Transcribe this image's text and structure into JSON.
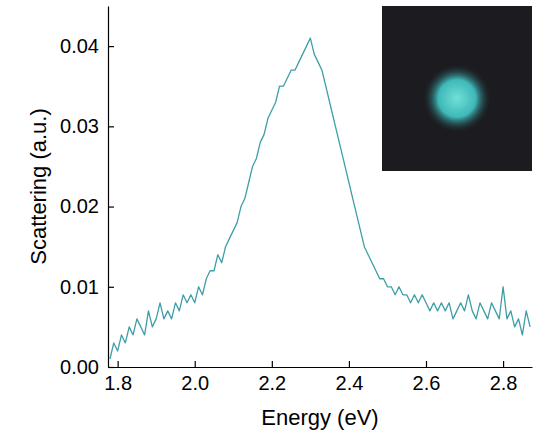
{
  "chart_data": {
    "type": "line",
    "xlabel": "Energy (eV)",
    "ylabel": "Scattering (a.u.)",
    "color": "#3e9ea8",
    "xlim": [
      1.775,
      2.875
    ],
    "ylim": [
      0,
      0.045
    ],
    "xticks": [
      1.8,
      {
        "value": 2,
        "label": "2.0"
      },
      2.2,
      2.4,
      2.6,
      2.8
    ],
    "yticks": [
      {
        "value": 0,
        "label": "0.00"
      },
      0.01,
      0.02,
      0.03,
      0.04
    ],
    "x": [
      1.78,
      1.79,
      1.8,
      1.81,
      1.82,
      1.83,
      1.84,
      1.85,
      1.86,
      1.87,
      1.88,
      1.89,
      1.9,
      1.91,
      1.92,
      1.93,
      1.94,
      1.95,
      1.96,
      1.97,
      1.98,
      1.99,
      2.0,
      2.01,
      2.02,
      2.03,
      2.04,
      2.05,
      2.06,
      2.07,
      2.08,
      2.09,
      2.1,
      2.11,
      2.12,
      2.13,
      2.14,
      2.15,
      2.16,
      2.17,
      2.18,
      2.19,
      2.2,
      2.21,
      2.22,
      2.23,
      2.24,
      2.25,
      2.26,
      2.27,
      2.28,
      2.29,
      2.3,
      2.31,
      2.32,
      2.33,
      2.34,
      2.35,
      2.36,
      2.37,
      2.38,
      2.39,
      2.4,
      2.41,
      2.42,
      2.43,
      2.44,
      2.45,
      2.46,
      2.47,
      2.48,
      2.49,
      2.5,
      2.51,
      2.52,
      2.53,
      2.54,
      2.55,
      2.56,
      2.57,
      2.58,
      2.59,
      2.6,
      2.61,
      2.62,
      2.63,
      2.64,
      2.65,
      2.66,
      2.67,
      2.68,
      2.69,
      2.7,
      2.71,
      2.72,
      2.73,
      2.74,
      2.75,
      2.76,
      2.77,
      2.78,
      2.79,
      2.8,
      2.81,
      2.82,
      2.83,
      2.84,
      2.85,
      2.86,
      2.87
    ],
    "values": [
      0.001,
      0.003,
      0.002,
      0.004,
      0.003,
      0.005,
      0.004,
      0.006,
      0.005,
      0.004,
      0.007,
      0.005,
      0.006,
      0.008,
      0.006,
      0.007,
      0.006,
      0.008,
      0.007,
      0.009,
      0.008,
      0.009,
      0.008,
      0.01,
      0.009,
      0.011,
      0.012,
      0.012,
      0.014,
      0.013,
      0.015,
      0.016,
      0.017,
      0.018,
      0.02,
      0.021,
      0.023,
      0.025,
      0.026,
      0.028,
      0.029,
      0.031,
      0.032,
      0.033,
      0.035,
      0.035,
      0.036,
      0.037,
      0.037,
      0.038,
      0.039,
      0.04,
      0.041,
      0.039,
      0.038,
      0.037,
      0.035,
      0.033,
      0.031,
      0.029,
      0.027,
      0.025,
      0.023,
      0.021,
      0.019,
      0.017,
      0.015,
      0.014,
      0.013,
      0.012,
      0.011,
      0.011,
      0.01,
      0.01,
      0.009,
      0.01,
      0.009,
      0.009,
      0.008,
      0.009,
      0.008,
      0.009,
      0.008,
      0.007,
      0.008,
      0.007,
      0.008,
      0.007,
      0.008,
      0.006,
      0.007,
      0.008,
      0.007,
      0.009,
      0.007,
      0.006,
      0.008,
      0.007,
      0.006,
      0.008,
      0.007,
      0.006,
      0.01,
      0.006,
      0.007,
      0.005,
      0.006,
      0.004,
      0.007,
      0.005
    ]
  }
}
